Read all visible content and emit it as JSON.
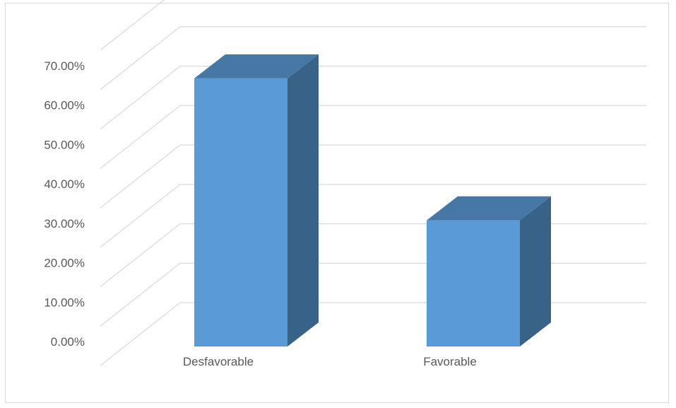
{
  "chart_data": {
    "type": "bar",
    "title": "",
    "xlabel": "",
    "ylabel": "",
    "categories": [
      "Desfavorable",
      "Favorable"
    ],
    "values": [
      0.68,
      0.32
    ],
    "ylim": [
      0,
      0.8
    ],
    "y_ticks": [
      0,
      0.1,
      0.2,
      0.3,
      0.4,
      0.5,
      0.6,
      0.7
    ],
    "y_tick_labels": [
      "0.00%",
      "10.00%",
      "20.00%",
      "30.00%",
      "40.00%",
      "50.00%",
      "60.00%",
      "70.00%"
    ],
    "grid": true,
    "style": "3d-column",
    "colors": {
      "front": "#5b9bd5",
      "top": "#4677a5",
      "side": "#386288",
      "grid": "#d9d9d9"
    }
  }
}
